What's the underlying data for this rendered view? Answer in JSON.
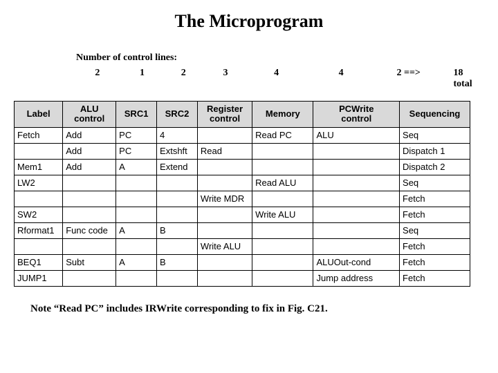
{
  "title": "The Microprogram",
  "ncl_label": "Number of control lines:",
  "ncl_values": [
    "2",
    "1",
    "2",
    "3",
    "4",
    "4",
    "2  ==>"
  ],
  "ncl_widths": [
    62,
    68,
    52,
    70,
    78,
    110,
    86
  ],
  "total_label": "18 total",
  "columns": [
    "Label",
    "ALU control",
    "SRC1",
    "SRC2",
    "Register control",
    "Memory",
    "PCWrite control",
    "Sequencing"
  ],
  "rows": [
    [
      "Fetch",
      "Add",
      "PC",
      "4",
      "",
      "Read PC",
      "ALU",
      "Seq"
    ],
    [
      "",
      "Add",
      "PC",
      "Extshft",
      "Read",
      "",
      "",
      "Dispatch 1"
    ],
    [
      "Mem1",
      "Add",
      "A",
      "Extend",
      "",
      "",
      "",
      "Dispatch 2"
    ],
    [
      "LW2",
      "",
      "",
      "",
      "",
      "Read ALU",
      "",
      "Seq"
    ],
    [
      "",
      "",
      "",
      "",
      "Write MDR",
      "",
      "",
      "Fetch"
    ],
    [
      "SW2",
      "",
      "",
      "",
      "",
      "Write ALU",
      "",
      "Fetch"
    ],
    [
      "Rformat1",
      "Func code",
      "A",
      "B",
      "",
      "",
      "",
      "Seq"
    ],
    [
      "",
      "",
      "",
      "",
      "Write ALU",
      "",
      "",
      "Fetch"
    ],
    [
      "BEQ1",
      "Subt",
      "A",
      "B",
      "",
      "",
      "ALUOut-cond",
      "Fetch"
    ],
    [
      "JUMP1",
      "",
      "",
      "",
      "",
      "",
      "Jump address",
      "Fetch"
    ]
  ],
  "footnote": "Note “Read PC” includes IRWrite corresponding to fix in Fig. C21."
}
